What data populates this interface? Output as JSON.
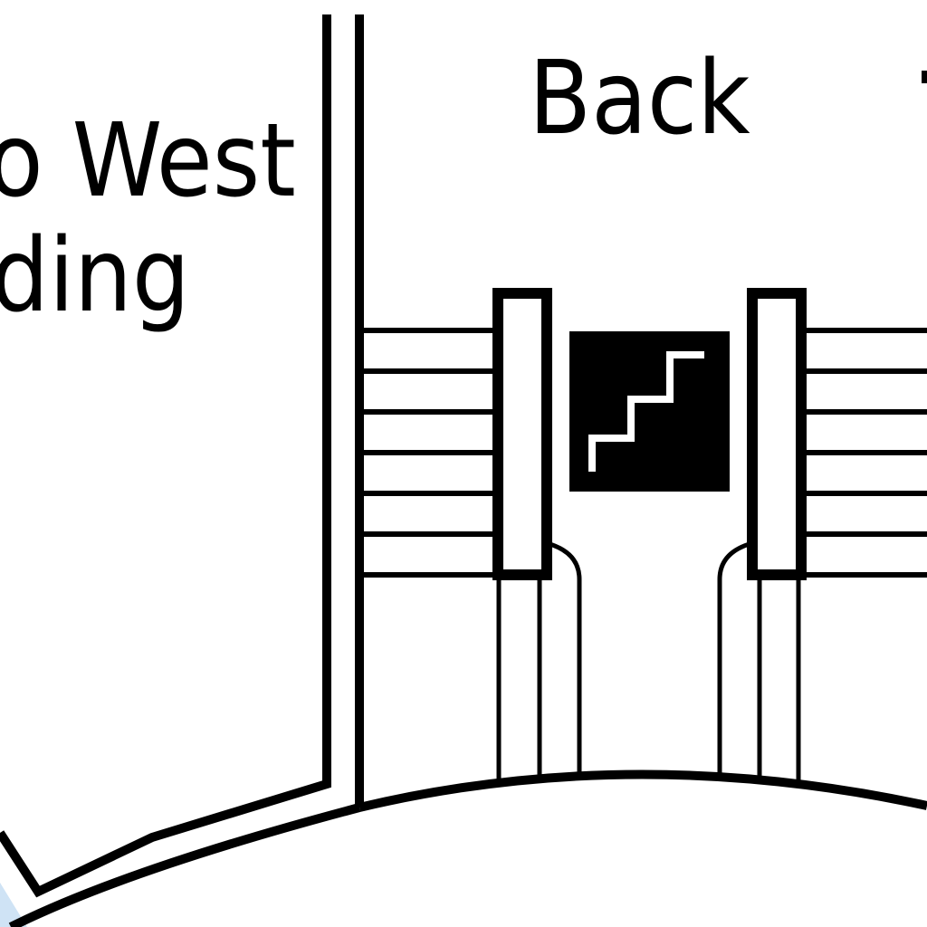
{
  "labels": {
    "building_line1": "o West",
    "building_line2": "ding",
    "area_back": "Back"
  },
  "icons": {
    "stairs": "stairs-icon"
  },
  "colors": {
    "ink": "#000000",
    "paper": "#ffffff",
    "water": "#cfe3f5"
  }
}
